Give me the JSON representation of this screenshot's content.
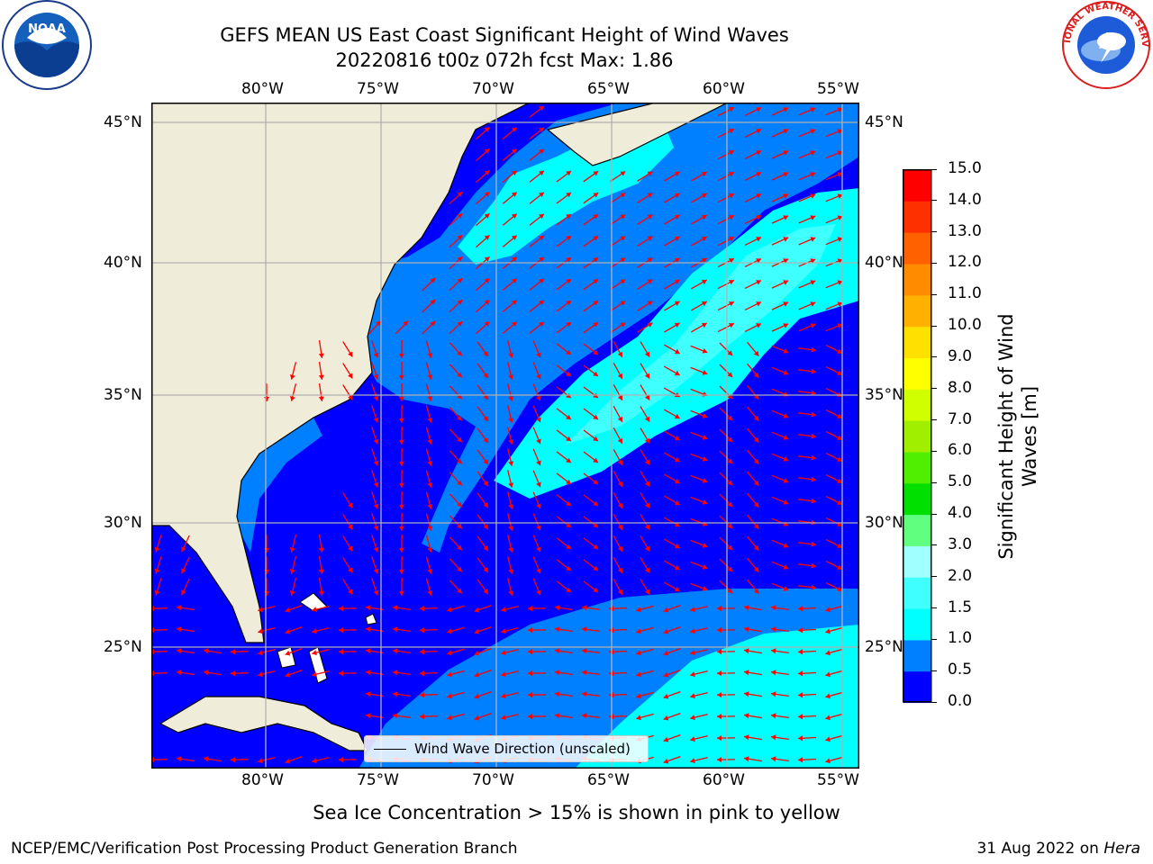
{
  "header": {
    "title_line1": "GEFS MEAN US East Coast Significant Height of Wind Waves",
    "title_line2": "20220816 t00z 072h fcst   Max: 1.86"
  },
  "logos": {
    "left": "NOAA",
    "right": "NATIONAL WEATHER SERVICE"
  },
  "map": {
    "lon_labels": [
      "80°W",
      "75°W",
      "70°W",
      "65°W",
      "60°W",
      "55°W"
    ],
    "lat_labels": [
      "45°N",
      "40°N",
      "35°N",
      "30°N",
      "25°N"
    ],
    "legend_label": "Wind Wave Direction (unscaled)",
    "colors": {
      "land": "#efedd9",
      "arrows": "#ff0000",
      "grid": "#b0b0b0"
    }
  },
  "colorbar": {
    "label_line1": "Significant Height of Wind",
    "label_line2": "Waves [m]",
    "ticks": [
      "0.0",
      "0.5",
      "1.0",
      "1.5",
      "2.0",
      "3.0",
      "4.0",
      "5.0",
      "6.0",
      "7.0",
      "8.0",
      "9.0",
      "10.0",
      "11.0",
      "12.0",
      "13.0",
      "14.0",
      "15.0"
    ],
    "colors": [
      "#0000ff",
      "#0080ff",
      "#00ffff",
      "#40ffff",
      "#a0ffff",
      "#60ff80",
      "#00e000",
      "#50ee00",
      "#a0ee00",
      "#d0ff00",
      "#ffff00",
      "#ffe000",
      "#ffb000",
      "#ff8c00",
      "#ff6000",
      "#ff3000",
      "#ff0000"
    ]
  },
  "footer": {
    "sea_ice_note": "Sea Ice Concentration > 15% is shown in pink to yellow",
    "credit": "NCEP/EMC/Verification Post Processing Product Generation Branch",
    "date": "31 Aug 2022 on",
    "machine": "Hera"
  },
  "chart_data": {
    "type": "heatmap",
    "title": "GEFS MEAN US East Coast Significant Height of Wind Waves",
    "subtitle": "20220816 t00z 072h fcst   Max: 1.86",
    "variable": "Significant Height of Wind Waves [m]",
    "max_value": 1.86,
    "lon_range": [
      -85,
      -54
    ],
    "lat_range": [
      20.5,
      46
    ],
    "colorbar_range": [
      0,
      15
    ],
    "colorbar_levels": [
      0.0,
      0.5,
      1.0,
      1.5,
      2.0,
      3.0,
      4.0,
      5.0,
      6.0,
      7.0,
      8.0,
      9.0,
      10.0,
      11.0,
      12.0,
      13.0,
      14.0,
      15.0
    ],
    "grid": true,
    "legend": "Wind Wave Direction (unscaled)",
    "legend_placement": "bottom-center"
  }
}
